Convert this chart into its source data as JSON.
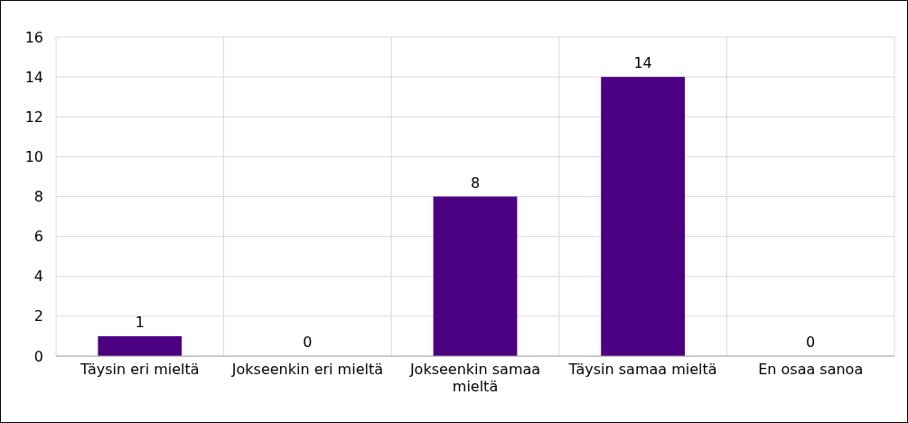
{
  "chart_data": {
    "type": "bar",
    "categories": [
      "Täysin eri mieltä",
      "Jokseenkin eri mieltä",
      "Jokseenkin samaa mieltä",
      "Täysin samaa mieltä",
      "En osaa sanoa"
    ],
    "values": [
      1,
      0,
      8,
      14,
      0
    ],
    "color": "#4b0082",
    "ylim": [
      0,
      16
    ],
    "yticks": [
      0,
      2,
      4,
      6,
      8,
      10,
      12,
      14,
      16
    ],
    "grid": true,
    "data_labels": true
  }
}
